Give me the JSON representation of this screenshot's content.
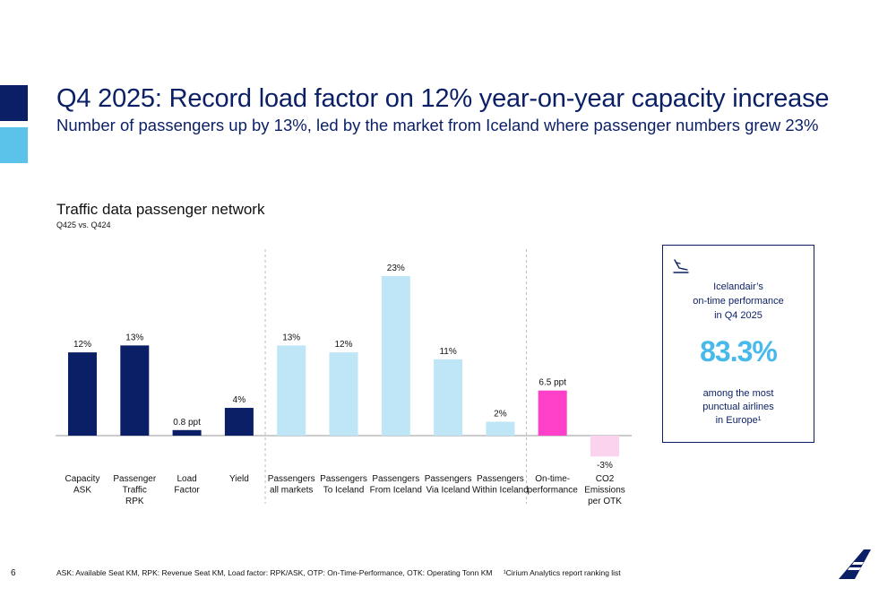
{
  "slide": {
    "title": "Q4 2025: Record load factor on 12% year-on-year capacity increase",
    "subtitle": "Number of passengers up by 13%, led by the market from Iceland where passenger numbers grew 23%",
    "page_number": "6",
    "accent_dark": "#0b1f66",
    "accent_light": "#5bc2ea"
  },
  "chart_data": {
    "type": "bar",
    "title": "Traffic data passenger network",
    "subtitle": "Q425 vs. Q424",
    "xlabel": "",
    "ylabel": "",
    "grid": false,
    "categories": [
      {
        "lines": [
          "Capacity",
          "ASK"
        ]
      },
      {
        "lines": [
          "Passenger",
          "Traffic",
          "RPK"
        ]
      },
      {
        "lines": [
          "Load",
          "Factor"
        ]
      },
      {
        "lines": [
          "Yield"
        ]
      },
      {
        "lines": [
          "Passengers",
          "all markets"
        ]
      },
      {
        "lines": [
          "Passengers",
          "To Iceland"
        ]
      },
      {
        "lines": [
          "Passengers",
          "From Iceland"
        ]
      },
      {
        "lines": [
          "Passengers",
          "Via Iceland"
        ]
      },
      {
        "lines": [
          "Passengers",
          "Within Iceland"
        ]
      },
      {
        "lines": [
          "On-time-",
          "performance"
        ]
      },
      {
        "lines": [
          "CO2",
          "Emissions",
          "per OTK"
        ]
      }
    ],
    "values": [
      12,
      13,
      0.8,
      4,
      13,
      12,
      23,
      11,
      2,
      6.5,
      -3
    ],
    "value_labels": [
      "12%",
      "13%",
      "0.8 ppt",
      "4%",
      "13%",
      "12%",
      "23%",
      "11%",
      "2%",
      "6.5 ppt",
      "-3%"
    ],
    "colors": [
      "#0b1f66",
      "#0b1f66",
      "#0b1f66",
      "#0b1f66",
      "#bfe6f6",
      "#bfe6f6",
      "#bfe6f6",
      "#bfe6f6",
      "#bfe6f6",
      "#ff40c8",
      "#fcd3ef"
    ],
    "group_separators_after": [
      3,
      8
    ]
  },
  "kpi": {
    "icon": "plane-landing-icon",
    "heading": [
      "Icelandair’s",
      "on-time performance",
      "in Q4 2025"
    ],
    "value": "83.3%",
    "value_color": "#47b9ea",
    "note": [
      "among the most",
      "punctual airlines",
      "in Europe¹"
    ]
  },
  "footnote": {
    "abbreviations": "ASK: Available Seat KM, RPK: Revenue Seat KM, Load factor: RPK/ASK, OTP: On-Time-Performance, OTK: Operating Tonn KM",
    "source": "¹Cirium Analytics report ranking list"
  }
}
